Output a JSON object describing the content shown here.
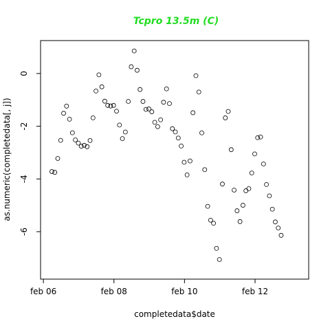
{
  "chart_data": {
    "type": "scatter",
    "title": "Tcpro 13.5m (C)",
    "title_color": "#22dd22",
    "xlabel": "completedata$date",
    "ylabel": "as.numeric(completedata[, j])",
    "x_unit": "days",
    "xlim": [
      5.96,
      9.76
    ],
    "ylim": [
      -7.8,
      1.25
    ],
    "x_ticks": [
      {
        "value": 6,
        "label": "feb 06"
      },
      {
        "value": 7,
        "label": "feb 08"
      },
      {
        "value": 8,
        "label": "feb 10"
      },
      {
        "value": 9,
        "label": "feb 12"
      }
    ],
    "y_ticks": [
      {
        "value": 0,
        "label": "0"
      },
      {
        "value": -2,
        "label": "-2"
      },
      {
        "value": -4,
        "label": "-4"
      },
      {
        "value": -6,
        "label": "-6"
      }
    ],
    "marker": "open-circle",
    "marker_color": "#000000",
    "grid": false,
    "legend": "none",
    "knots": [
      [
        6.12,
        -3.75
      ],
      [
        6.15,
        -3.95
      ],
      [
        6.2,
        -3.2
      ],
      [
        6.25,
        -2.5
      ],
      [
        6.28,
        -1.7
      ],
      [
        6.31,
        -1.0
      ],
      [
        6.34,
        -1.3
      ],
      [
        6.38,
        -1.9
      ],
      [
        6.42,
        -2.35
      ],
      [
        6.47,
        -2.6
      ],
      [
        6.52,
        -2.7
      ],
      [
        6.57,
        -2.75
      ],
      [
        6.62,
        -2.8
      ],
      [
        6.66,
        -2.5
      ],
      [
        6.7,
        -1.8
      ],
      [
        6.74,
        -0.8
      ],
      [
        6.78,
        0.05
      ],
      [
        6.81,
        -0.2
      ],
      [
        6.85,
        -0.9
      ],
      [
        6.89,
        -1.2
      ],
      [
        6.95,
        -1.25
      ],
      [
        7.0,
        -1.15
      ],
      [
        7.04,
        -1.5
      ],
      [
        7.08,
        -2.0
      ],
      [
        7.12,
        -2.4
      ],
      [
        7.16,
        -2.3
      ],
      [
        7.2,
        -1.2
      ],
      [
        7.24,
        0.2
      ],
      [
        7.28,
        0.95
      ],
      [
        7.32,
        0.3
      ],
      [
        7.36,
        -0.5
      ],
      [
        7.4,
        -1.0
      ],
      [
        7.45,
        -1.3
      ],
      [
        7.5,
        -1.4
      ],
      [
        7.55,
        -1.5
      ],
      [
        7.6,
        -2.0
      ],
      [
        7.64,
        -2.1
      ],
      [
        7.68,
        -1.5
      ],
      [
        7.72,
        -0.75
      ],
      [
        7.76,
        -0.5
      ],
      [
        7.79,
        -1.2
      ],
      [
        7.82,
        -2.1
      ],
      [
        7.86,
        -2.2
      ],
      [
        7.9,
        -2.3
      ],
      [
        7.94,
        -2.6
      ],
      [
        7.98,
        -3.2
      ],
      [
        8.02,
        -3.7
      ],
      [
        8.06,
        -3.9
      ],
      [
        8.09,
        -3.0
      ],
      [
        8.12,
        -1.5
      ],
      [
        8.15,
        -0.3
      ],
      [
        8.18,
        0.3
      ],
      [
        8.21,
        -1.0
      ],
      [
        8.25,
        -2.4
      ],
      [
        8.29,
        -3.8
      ],
      [
        8.33,
        -5.1
      ],
      [
        8.37,
        -5.5
      ],
      [
        8.41,
        -5.7
      ],
      [
        8.45,
        -6.5
      ],
      [
        8.47,
        -7.4
      ],
      [
        8.49,
        -7.3
      ],
      [
        8.52,
        -5.5
      ],
      [
        8.55,
        -3.2
      ],
      [
        8.58,
        -1.6
      ],
      [
        8.61,
        -1.1
      ],
      [
        8.64,
        -2.1
      ],
      [
        8.67,
        -3.2
      ],
      [
        8.7,
        -4.3
      ],
      [
        8.73,
        -5.1
      ],
      [
        8.76,
        -5.4
      ],
      [
        8.79,
        -5.65
      ],
      [
        8.82,
        -5.1
      ],
      [
        8.85,
        -4.5
      ],
      [
        8.88,
        -4.5
      ],
      [
        8.92,
        -4.35
      ],
      [
        8.96,
        -3.6
      ],
      [
        9.0,
        -3.0
      ],
      [
        9.03,
        -2.4
      ],
      [
        9.06,
        -2.55
      ],
      [
        9.08,
        -2.4
      ],
      [
        9.11,
        -3.2
      ],
      [
        9.14,
        -3.9
      ],
      [
        9.18,
        -4.4
      ],
      [
        9.22,
        -4.9
      ],
      [
        9.26,
        -5.3
      ],
      [
        9.3,
        -5.7
      ],
      [
        9.34,
        -6.0
      ],
      [
        9.38,
        -6.2
      ],
      [
        9.4,
        -6.45
      ]
    ]
  }
}
